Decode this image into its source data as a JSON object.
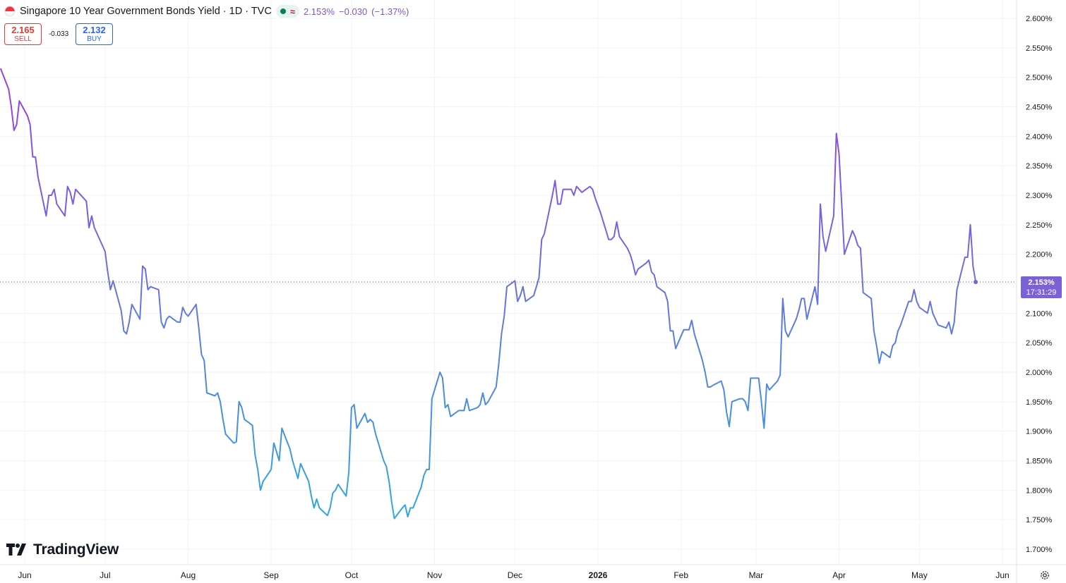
{
  "header": {
    "title": "Singapore 10 Year Government Bonds Yield · 1D · TVC",
    "last_value": "2.153%",
    "change": "−0.030",
    "change_pct": "(−1.37%)",
    "flag_icon": "singapore-flag-icon",
    "status_icon": "market-open-dot-icon",
    "approx_icon": "approx-icon"
  },
  "trade": {
    "sell_price": "2.165",
    "sell_label": "SELL",
    "spread": "-0.033",
    "buy_price": "2.132",
    "buy_label": "BUY"
  },
  "price_tag": {
    "value": "2.153%",
    "countdown": "17:31:29"
  },
  "logo_text": "TradingView",
  "colors": {
    "line_top": "#9c3ee0",
    "line_bottom": "#2ea8df",
    "price_tag": "#7b61d6",
    "sell": "#e53935",
    "buy": "#2962ff"
  },
  "chart_data": {
    "type": "line",
    "title": "Singapore 10 Year Government Bonds Yield",
    "xlabel": "",
    "ylabel": "",
    "ylim": [
      1.675,
      2.6
    ],
    "y_ticks": [
      "2.600%",
      "2.550%",
      "2.500%",
      "2.450%",
      "2.400%",
      "2.350%",
      "2.300%",
      "2.250%",
      "2.200%",
      "2.150%",
      "2.100%",
      "2.050%",
      "2.000%",
      "1.950%",
      "1.900%",
      "1.850%",
      "1.800%",
      "1.750%",
      "1.700%"
    ],
    "x_ticks": [
      {
        "label": "Jun",
        "date": "2025-06-01"
      },
      {
        "label": "Jul",
        "date": "2025-07-01"
      },
      {
        "label": "Aug",
        "date": "2025-08-01"
      },
      {
        "label": "Sep",
        "date": "2025-09-01"
      },
      {
        "label": "Oct",
        "date": "2025-10-01"
      },
      {
        "label": "Nov",
        "date": "2025-11-01"
      },
      {
        "label": "Dec",
        "date": "2025-12-01"
      },
      {
        "label": "2026",
        "date": "2026-01-01"
      },
      {
        "label": "Feb",
        "date": "2026-02-01"
      },
      {
        "label": "Mar",
        "date": "2026-03-01"
      },
      {
        "label": "Apr",
        "date": "2026-04-01"
      },
      {
        "label": "May",
        "date": "2026-05-01"
      },
      {
        "label": "Jun",
        "date": "2026-06-01"
      }
    ],
    "grid": true,
    "last_value": 2.153,
    "series": [
      {
        "values": [
          [
            "2025-05-23",
            2.515
          ],
          [
            "2025-05-26",
            2.48
          ],
          [
            "2025-05-27",
            2.45
          ],
          [
            "2025-05-28",
            2.41
          ],
          [
            "2025-05-29",
            2.42
          ],
          [
            "2025-05-30",
            2.46
          ],
          [
            "2025-06-02",
            2.435
          ],
          [
            "2025-06-03",
            2.42
          ],
          [
            "2025-06-04",
            2.365
          ],
          [
            "2025-06-05",
            2.365
          ],
          [
            "2025-06-06",
            2.33
          ],
          [
            "2025-06-09",
            2.265
          ],
          [
            "2025-06-10",
            2.3
          ],
          [
            "2025-06-11",
            2.3
          ],
          [
            "2025-06-12",
            2.31
          ],
          [
            "2025-06-13",
            2.285
          ],
          [
            "2025-06-16",
            2.265
          ],
          [
            "2025-06-17",
            2.315
          ],
          [
            "2025-06-18",
            2.305
          ],
          [
            "2025-06-19",
            2.285
          ],
          [
            "2025-06-20",
            2.31
          ],
          [
            "2025-06-23",
            2.295
          ],
          [
            "2025-06-24",
            2.29
          ],
          [
            "2025-06-25",
            2.245
          ],
          [
            "2025-06-26",
            2.265
          ],
          [
            "2025-06-27",
            2.245
          ],
          [
            "2025-06-30",
            2.215
          ],
          [
            "2025-07-01",
            2.205
          ],
          [
            "2025-07-02",
            2.17
          ],
          [
            "2025-07-03",
            2.14
          ],
          [
            "2025-07-04",
            2.155
          ],
          [
            "2025-07-07",
            2.105
          ],
          [
            "2025-07-08",
            2.07
          ],
          [
            "2025-07-09",
            2.065
          ],
          [
            "2025-07-10",
            2.085
          ],
          [
            "2025-07-11",
            2.115
          ],
          [
            "2025-07-14",
            2.09
          ],
          [
            "2025-07-15",
            2.18
          ],
          [
            "2025-07-16",
            2.175
          ],
          [
            "2025-07-17",
            2.14
          ],
          [
            "2025-07-18",
            2.145
          ],
          [
            "2025-07-21",
            2.14
          ],
          [
            "2025-07-22",
            2.085
          ],
          [
            "2025-07-23",
            2.075
          ],
          [
            "2025-07-24",
            2.09
          ],
          [
            "2025-07-25",
            2.095
          ],
          [
            "2025-07-28",
            2.085
          ],
          [
            "2025-07-29",
            2.085
          ],
          [
            "2025-07-30",
            2.11
          ],
          [
            "2025-07-31",
            2.1
          ],
          [
            "2025-08-01",
            2.095
          ],
          [
            "2025-08-04",
            2.115
          ],
          [
            "2025-08-05",
            2.075
          ],
          [
            "2025-08-06",
            2.03
          ],
          [
            "2025-08-07",
            2.02
          ],
          [
            "2025-08-08",
            1.965
          ],
          [
            "2025-08-11",
            1.96
          ],
          [
            "2025-08-12",
            1.965
          ],
          [
            "2025-08-13",
            1.95
          ],
          [
            "2025-08-14",
            1.92
          ],
          [
            "2025-08-15",
            1.895
          ],
          [
            "2025-08-18",
            1.88
          ],
          [
            "2025-08-19",
            1.882
          ],
          [
            "2025-08-20",
            1.95
          ],
          [
            "2025-08-21",
            1.94
          ],
          [
            "2025-08-22",
            1.92
          ],
          [
            "2025-08-25",
            1.91
          ],
          [
            "2025-08-26",
            1.86
          ],
          [
            "2025-08-27",
            1.835
          ],
          [
            "2025-08-28",
            1.8
          ],
          [
            "2025-08-29",
            1.815
          ],
          [
            "2025-09-01",
            1.835
          ],
          [
            "2025-09-02",
            1.88
          ],
          [
            "2025-09-03",
            1.865
          ],
          [
            "2025-09-04",
            1.85
          ],
          [
            "2025-09-05",
            1.905
          ],
          [
            "2025-09-08",
            1.87
          ],
          [
            "2025-09-09",
            1.85
          ],
          [
            "2025-09-10",
            1.835
          ],
          [
            "2025-09-11",
            1.82
          ],
          [
            "2025-09-12",
            1.845
          ],
          [
            "2025-09-15",
            1.815
          ],
          [
            "2025-09-16",
            1.79
          ],
          [
            "2025-09-17",
            1.77
          ],
          [
            "2025-09-18",
            1.785
          ],
          [
            "2025-09-19",
            1.77
          ],
          [
            "2025-09-22",
            1.757
          ],
          [
            "2025-09-23",
            1.77
          ],
          [
            "2025-09-24",
            1.795
          ],
          [
            "2025-09-25",
            1.8
          ],
          [
            "2025-09-26",
            1.81
          ],
          [
            "2025-09-29",
            1.79
          ],
          [
            "2025-09-30",
            1.83
          ],
          [
            "2025-10-01",
            1.94
          ],
          [
            "2025-10-02",
            1.945
          ],
          [
            "2025-10-03",
            1.905
          ],
          [
            "2025-10-06",
            1.93
          ],
          [
            "2025-10-07",
            1.915
          ],
          [
            "2025-10-08",
            1.92
          ],
          [
            "2025-10-09",
            1.915
          ],
          [
            "2025-10-10",
            1.895
          ],
          [
            "2025-10-13",
            1.85
          ],
          [
            "2025-10-14",
            1.84
          ],
          [
            "2025-10-15",
            1.815
          ],
          [
            "2025-10-16",
            1.78
          ],
          [
            "2025-10-17",
            1.752
          ],
          [
            "2025-10-20",
            1.77
          ],
          [
            "2025-10-21",
            1.775
          ],
          [
            "2025-10-22",
            1.755
          ],
          [
            "2025-10-23",
            1.77
          ],
          [
            "2025-10-24",
            1.77
          ],
          [
            "2025-10-27",
            1.805
          ],
          [
            "2025-10-28",
            1.825
          ],
          [
            "2025-10-29",
            1.835
          ],
          [
            "2025-10-30",
            1.835
          ],
          [
            "2025-10-31",
            1.955
          ],
          [
            "2025-11-03",
            2.0
          ],
          [
            "2025-11-04",
            1.99
          ],
          [
            "2025-11-05",
            1.94
          ],
          [
            "2025-11-06",
            1.945
          ],
          [
            "2025-11-07",
            1.925
          ],
          [
            "2025-11-10",
            1.935
          ],
          [
            "2025-11-11",
            1.935
          ],
          [
            "2025-11-12",
            1.935
          ],
          [
            "2025-11-13",
            1.955
          ],
          [
            "2025-11-14",
            1.935
          ],
          [
            "2025-11-17",
            1.94
          ],
          [
            "2025-11-18",
            1.945
          ],
          [
            "2025-11-19",
            1.965
          ],
          [
            "2025-11-20",
            1.945
          ],
          [
            "2025-11-21",
            1.95
          ],
          [
            "2025-11-24",
            1.975
          ],
          [
            "2025-11-25",
            2.015
          ],
          [
            "2025-11-26",
            2.065
          ],
          [
            "2025-11-27",
            2.095
          ],
          [
            "2025-11-28",
            2.145
          ],
          [
            "2025-12-01",
            2.155
          ],
          [
            "2025-12-02",
            2.12
          ],
          [
            "2025-12-03",
            2.13
          ],
          [
            "2025-12-04",
            2.145
          ],
          [
            "2025-12-05",
            2.12
          ],
          [
            "2025-12-08",
            2.13
          ],
          [
            "2025-12-09",
            2.145
          ],
          [
            "2025-12-10",
            2.16
          ],
          [
            "2025-12-11",
            2.225
          ],
          [
            "2025-12-12",
            2.235
          ],
          [
            "2025-12-15",
            2.3
          ],
          [
            "2025-12-16",
            2.325
          ],
          [
            "2025-12-17",
            2.285
          ],
          [
            "2025-12-18",
            2.285
          ],
          [
            "2025-12-19",
            2.31
          ],
          [
            "2025-12-22",
            2.31
          ],
          [
            "2025-12-23",
            2.3
          ],
          [
            "2025-12-24",
            2.315
          ],
          [
            "2025-12-26",
            2.305
          ],
          [
            "2025-12-29",
            2.315
          ],
          [
            "2025-12-30",
            2.31
          ],
          [
            "2025-12-31",
            2.295
          ],
          [
            "2026-01-02",
            2.27
          ],
          [
            "2026-01-05",
            2.225
          ],
          [
            "2026-01-06",
            2.225
          ],
          [
            "2026-01-07",
            2.23
          ],
          [
            "2026-01-08",
            2.255
          ],
          [
            "2026-01-09",
            2.23
          ],
          [
            "2026-01-12",
            2.21
          ],
          [
            "2026-01-13",
            2.2
          ],
          [
            "2026-01-14",
            2.185
          ],
          [
            "2026-01-15",
            2.165
          ],
          [
            "2026-01-16",
            2.175
          ],
          [
            "2026-01-19",
            2.185
          ],
          [
            "2026-01-20",
            2.19
          ],
          [
            "2026-01-21",
            2.17
          ],
          [
            "2026-01-22",
            2.165
          ],
          [
            "2026-01-23",
            2.145
          ],
          [
            "2026-01-26",
            2.135
          ],
          [
            "2026-01-27",
            2.12
          ],
          [
            "2026-01-28",
            2.07
          ],
          [
            "2026-01-29",
            2.07
          ],
          [
            "2026-01-30",
            2.04
          ],
          [
            "2026-02-02",
            2.072
          ],
          [
            "2026-02-03",
            2.072
          ],
          [
            "2026-02-04",
            2.072
          ],
          [
            "2026-02-05",
            2.088
          ],
          [
            "2026-02-06",
            2.065
          ],
          [
            "2026-02-09",
            2.02
          ],
          [
            "2026-02-10",
            2.0
          ],
          [
            "2026-02-11",
            1.975
          ],
          [
            "2026-02-12",
            1.975
          ],
          [
            "2026-02-13",
            1.978
          ],
          [
            "2026-02-16",
            1.985
          ],
          [
            "2026-02-17",
            1.97
          ],
          [
            "2026-02-18",
            1.932
          ],
          [
            "2026-02-19",
            1.908
          ],
          [
            "2026-02-20",
            1.95
          ],
          [
            "2026-02-23",
            1.955
          ],
          [
            "2026-02-24",
            1.955
          ],
          [
            "2026-02-25",
            1.95
          ],
          [
            "2026-02-26",
            1.935
          ],
          [
            "2026-02-27",
            1.99
          ],
          [
            "2026-03-02",
            1.99
          ],
          [
            "2026-03-03",
            1.95
          ],
          [
            "2026-03-04",
            1.905
          ],
          [
            "2026-03-05",
            1.98
          ],
          [
            "2026-03-06",
            1.97
          ],
          [
            "2026-03-09",
            1.985
          ],
          [
            "2026-03-10",
            1.995
          ],
          [
            "2026-03-11",
            2.125
          ],
          [
            "2026-03-12",
            2.07
          ],
          [
            "2026-03-13",
            2.06
          ],
          [
            "2026-03-16",
            2.09
          ],
          [
            "2026-03-17",
            2.105
          ],
          [
            "2026-03-18",
            2.125
          ],
          [
            "2026-03-19",
            2.125
          ],
          [
            "2026-03-20",
            2.09
          ],
          [
            "2026-03-23",
            2.145
          ],
          [
            "2026-03-24",
            2.115
          ],
          [
            "2026-03-25",
            2.285
          ],
          [
            "2026-03-26",
            2.23
          ],
          [
            "2026-03-27",
            2.205
          ],
          [
            "2026-03-30",
            2.265
          ],
          [
            "2026-03-31",
            2.405
          ],
          [
            "2026-04-01",
            2.37
          ],
          [
            "2026-04-02",
            2.285
          ],
          [
            "2026-04-03",
            2.2
          ],
          [
            "2026-04-06",
            2.24
          ],
          [
            "2026-04-07",
            2.23
          ],
          [
            "2026-04-08",
            2.215
          ],
          [
            "2026-04-09",
            2.21
          ],
          [
            "2026-04-10",
            2.135
          ],
          [
            "2026-04-13",
            2.125
          ],
          [
            "2026-04-14",
            2.07
          ],
          [
            "2026-04-15",
            2.045
          ],
          [
            "2026-04-16",
            2.015
          ],
          [
            "2026-04-17",
            2.035
          ],
          [
            "2026-04-20",
            2.025
          ],
          [
            "2026-04-21",
            2.045
          ],
          [
            "2026-04-22",
            2.05
          ],
          [
            "2026-04-23",
            2.07
          ],
          [
            "2026-04-24",
            2.08
          ],
          [
            "2026-04-27",
            2.12
          ],
          [
            "2026-04-28",
            2.12
          ],
          [
            "2026-04-29",
            2.14
          ],
          [
            "2026-04-30",
            2.12
          ],
          [
            "2026-05-01",
            2.11
          ],
          [
            "2026-05-04",
            2.1
          ],
          [
            "2026-05-05",
            2.12
          ],
          [
            "2026-05-06",
            2.1
          ],
          [
            "2026-05-07",
            2.09
          ],
          [
            "2026-05-08",
            2.08
          ],
          [
            "2026-05-11",
            2.075
          ],
          [
            "2026-05-12",
            2.085
          ],
          [
            "2026-05-13",
            2.065
          ],
          [
            "2026-05-14",
            2.085
          ],
          [
            "2026-05-15",
            2.14
          ],
          [
            "2026-05-18",
            2.195
          ],
          [
            "2026-05-19",
            2.195
          ],
          [
            "2026-05-20",
            2.25
          ],
          [
            "2026-05-21",
            2.18
          ],
          [
            "2026-05-22",
            2.153
          ]
        ]
      }
    ]
  }
}
